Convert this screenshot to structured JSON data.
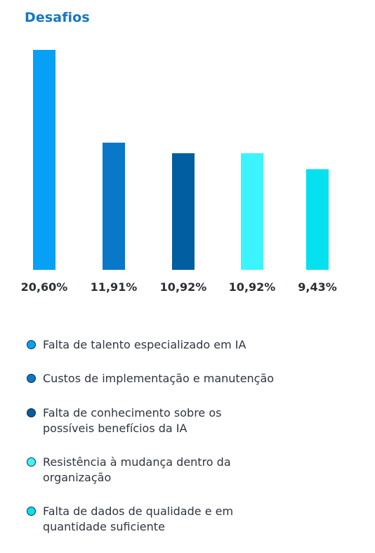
{
  "title": "Desafios",
  "chart_data": {
    "type": "bar",
    "categories": [
      "Falta de talento especializado em IA",
      "Custos de implementação e manutenção",
      "Falta de conhecimento sobre os possíveis benefícios da IA",
      "Resistência à mudança dentro da organização",
      "Falta de dados de qualidade e em quantidade suficiente"
    ],
    "values": [
      20.6,
      11.91,
      10.92,
      10.92,
      9.43
    ],
    "value_labels": [
      "20,60%",
      "11,91%",
      "10,92%",
      "10,92%",
      "9,43%"
    ],
    "colors": [
      "#06a0f6",
      "#0a78c8",
      "#015ea0",
      "#3cf4ff",
      "#06e1f0"
    ],
    "ylim": [
      0,
      20.6
    ],
    "grid": false,
    "legend_position": "bottom"
  }
}
